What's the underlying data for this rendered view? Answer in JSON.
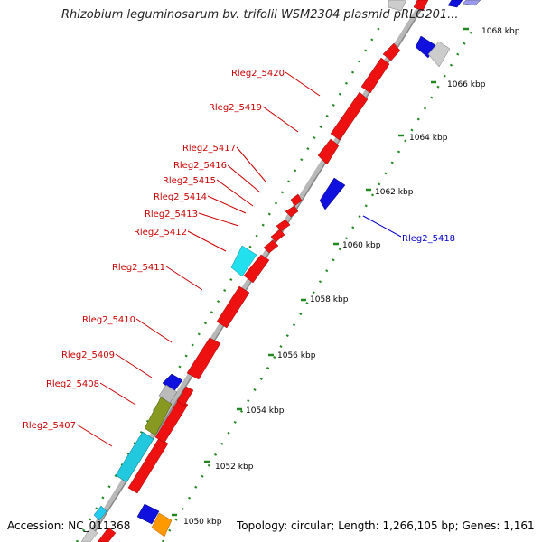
{
  "title": "Rhizobium leguminosarum bv. trifolii WSM2304 plasmid pRLG201...",
  "accession": "Accession: NC_011368",
  "summary": "Topology: circular; Length: 1,266,105 bp; Genes: 1,161",
  "colors": {
    "forward_gene": "#ee1111",
    "reverse_gene": "#1111dd",
    "label_forward": "#cc0000",
    "label_reverse": "#0000cc",
    "backbone": "#999999",
    "tick": "#228822"
  },
  "kbp_ticks": [
    "1050 kbp",
    "1052 kbp",
    "1054 kbp",
    "1056 kbp",
    "1058 kbp",
    "1060 kbp",
    "1062 kbp",
    "1064 kbp",
    "1066 kbp",
    "1068 kbp"
  ],
  "gene_labels": [
    {
      "name": "Rleg2_5420",
      "strand": "forward"
    },
    {
      "name": "Rleg2_5419",
      "strand": "forward"
    },
    {
      "name": "Rleg2_5417",
      "strand": "forward"
    },
    {
      "name": "Rleg2_5416",
      "strand": "forward"
    },
    {
      "name": "Rleg2_5415",
      "strand": "forward"
    },
    {
      "name": "Rleg2_5414",
      "strand": "forward"
    },
    {
      "name": "Rleg2_5413",
      "strand": "forward"
    },
    {
      "name": "Rleg2_5412",
      "strand": "forward"
    },
    {
      "name": "Rleg2_5411",
      "strand": "forward"
    },
    {
      "name": "Rleg2_5410",
      "strand": "forward"
    },
    {
      "name": "Rleg2_5409",
      "strand": "forward"
    },
    {
      "name": "Rleg2_5408",
      "strand": "forward"
    },
    {
      "name": "Rleg2_5407",
      "strand": "forward"
    },
    {
      "name": "Rleg2_5418",
      "strand": "reverse"
    }
  ]
}
